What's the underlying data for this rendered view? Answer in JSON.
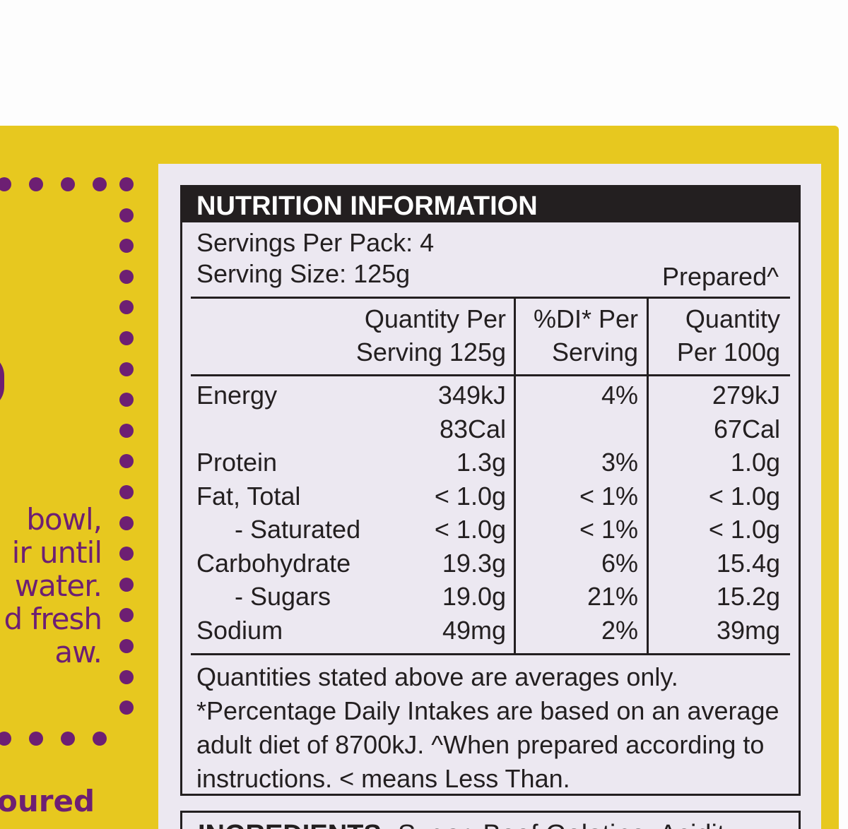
{
  "package_left": {
    "lines": [
      "bowl,",
      "ir until",
      "water.",
      "d fresh",
      "aw."
    ],
    "heading": "oured"
  },
  "nutrition": {
    "title": "NUTRITION INFORMATION",
    "servings_per_pack": "Servings Per Pack: 4",
    "serving_size": "Serving Size: 125g",
    "prepared_label": "Prepared^",
    "columns": [
      {
        "line1": "Quantity Per",
        "line2": "Serving 125g"
      },
      {
        "line1": "%DI* Per",
        "line2": "Serving"
      },
      {
        "line1": "Quantity",
        "line2": "Per 100g"
      }
    ],
    "rows": [
      {
        "name": "Energy",
        "per_serving": "349kJ",
        "di": "4%",
        "per_100g": "279kJ"
      },
      {
        "name": "",
        "per_serving": "83Cal",
        "di": "",
        "per_100g": "67Cal"
      },
      {
        "name": "Protein",
        "per_serving": "1.3g",
        "di": "3%",
        "per_100g": "1.0g"
      },
      {
        "name": "Fat, Total",
        "per_serving": "< 1.0g",
        "di": "< 1%",
        "per_100g": "< 1.0g"
      },
      {
        "name": "- Saturated",
        "per_serving": "< 1.0g",
        "di": "< 1%",
        "per_100g": "< 1.0g"
      },
      {
        "name": "Carbohydrate",
        "per_serving": "19.3g",
        "di": "6%",
        "per_100g": "15.4g"
      },
      {
        "name": "- Sugars",
        "per_serving": "19.0g",
        "di": "21%",
        "per_100g": "15.2g"
      },
      {
        "name": "Sodium",
        "per_serving": "49mg",
        "di": "2%",
        "per_100g": "39mg"
      }
    ],
    "notes": [
      "Quantities stated above are averages only.",
      "*Percentage Daily Intakes are based on an average",
      "adult diet of 8700kJ. ^When prepared according to",
      "instructions. < means Less Than."
    ]
  },
  "ingredients": {
    "label": "INGREDIENTS",
    "text": "Sugar, Beef Gelatine, Acidity"
  },
  "colors": {
    "box_yellow": "#e7c81f",
    "accent_purple": "#6d1f73",
    "panel": "#ece8f1",
    "ink": "#231f20"
  }
}
